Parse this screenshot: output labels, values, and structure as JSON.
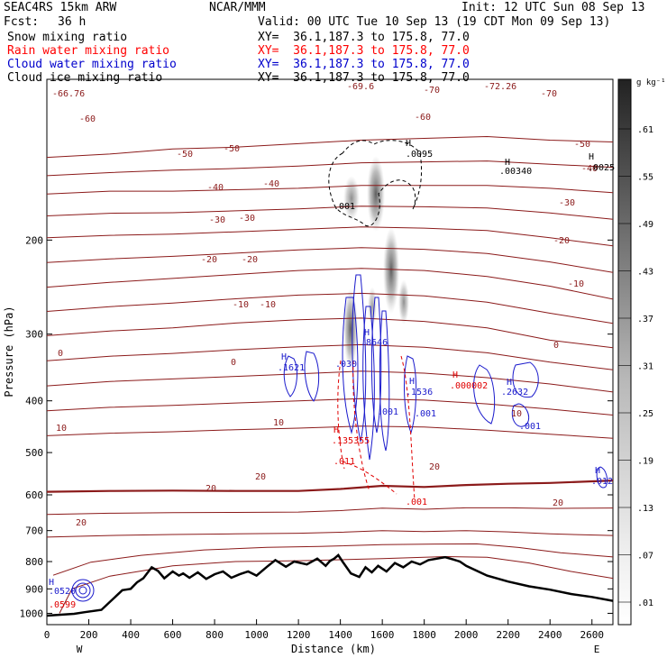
{
  "header": {
    "model": "SEAC4RS 15km ARW",
    "org": "NCAR/MMM",
    "init": "Init: 12 UTC Sun 08 Sep 13",
    "fcst_label": "Fcst:",
    "fcst_value": "36 h",
    "valid": "Valid: 00 UTC Tue 10 Sep 13 (19 CDT Mon 09 Sep 13)"
  },
  "fields": [
    {
      "name": "Snow mixing ratio",
      "xy": "XY=  36.1,187.3 to 175.8, 77.0",
      "color": "#000000"
    },
    {
      "name": "Rain water mixing ratio",
      "xy": "XY=  36.1,187.3 to 175.8, 77.0",
      "color": "#ff0000"
    },
    {
      "name": "Cloud water mixing ratio",
      "xy": "XY=  36.1,187.3 to 175.8, 77.0",
      "color": "#0000cc"
    },
    {
      "name": "Cloud ice mixing ratio",
      "xy": "XY=  36.1,187.3 to 175.8, 77.0",
      "color": "#000000"
    }
  ],
  "colorbar": {
    "unit": "g kg⁻¹",
    "labels": [
      ".61",
      ".55",
      ".49",
      ".43",
      ".37",
      ".31",
      ".25",
      ".19",
      ".13",
      ".07",
      ".01"
    ]
  },
  "chart_data": {
    "type": "contour",
    "xlabel": "Distance (km)",
    "ylabel": "Pressure (hPa)",
    "xlim": [
      0,
      2700
    ],
    "ylim": [
      1050,
      100
    ],
    "y_scale": "log",
    "x_ticks": [
      0,
      200,
      400,
      600,
      800,
      1000,
      1200,
      1400,
      1600,
      1800,
      2000,
      2200,
      2400,
      2600
    ],
    "y_ticks": [
      1000,
      900,
      800,
      700,
      600,
      500,
      400,
      300,
      200
    ],
    "x_end_labels": {
      "left": "W",
      "right": "E"
    },
    "terrain": [
      [
        0,
        1010
      ],
      [
        130,
        1002
      ],
      [
        180,
        995
      ],
      [
        260,
        985
      ],
      [
        360,
        905
      ],
      [
        400,
        900
      ],
      [
        430,
        875
      ],
      [
        460,
        860
      ],
      [
        500,
        820
      ],
      [
        530,
        833
      ],
      [
        560,
        860
      ],
      [
        600,
        835
      ],
      [
        630,
        850
      ],
      [
        650,
        842
      ],
      [
        680,
        858
      ],
      [
        720,
        838
      ],
      [
        760,
        862
      ],
      [
        800,
        845
      ],
      [
        840,
        835
      ],
      [
        880,
        858
      ],
      [
        920,
        845
      ],
      [
        960,
        835
      ],
      [
        1000,
        850
      ],
      [
        1050,
        818
      ],
      [
        1090,
        795
      ],
      [
        1140,
        818
      ],
      [
        1180,
        800
      ],
      [
        1240,
        810
      ],
      [
        1290,
        790
      ],
      [
        1330,
        815
      ],
      [
        1350,
        798
      ],
      [
        1370,
        790
      ],
      [
        1390,
        778
      ],
      [
        1410,
        800
      ],
      [
        1450,
        842
      ],
      [
        1490,
        855
      ],
      [
        1520,
        820
      ],
      [
        1550,
        838
      ],
      [
        1580,
        815
      ],
      [
        1620,
        835
      ],
      [
        1660,
        805
      ],
      [
        1700,
        820
      ],
      [
        1740,
        800
      ],
      [
        1780,
        810
      ],
      [
        1820,
        795
      ],
      [
        1860,
        790
      ],
      [
        1900,
        785
      ],
      [
        1940,
        793
      ],
      [
        1970,
        800
      ],
      [
        2000,
        815
      ],
      [
        2100,
        850
      ],
      [
        2200,
        872
      ],
      [
        2300,
        890
      ],
      [
        2400,
        903
      ],
      [
        2500,
        920
      ],
      [
        2600,
        932
      ],
      [
        2700,
        948
      ]
    ],
    "temperature_isotherms": [
      {
        "label": "-70",
        "points": [
          [
            0,
            140
          ],
          [
            300,
            138
          ],
          [
            600,
            135
          ],
          [
            900,
            134
          ],
          [
            1200,
            132
          ],
          [
            1500,
            130
          ],
          [
            1800,
            129
          ],
          [
            2100,
            128
          ],
          [
            2400,
            130
          ],
          [
            2700,
            131
          ]
        ]
      },
      {
        "label": "-60",
        "points": [
          [
            0,
            164
          ],
          [
            300,
            162
          ],
          [
            600,
            162
          ],
          [
            900,
            161
          ],
          [
            1200,
            160
          ],
          [
            1500,
            158
          ],
          [
            1800,
            158
          ],
          [
            2100,
            158
          ],
          [
            2400,
            160
          ],
          [
            2700,
            163
          ]
        ]
      },
      {
        "label": "-50",
        "points": [
          [
            0,
            198
          ],
          [
            300,
            196
          ],
          [
            600,
            195
          ],
          [
            900,
            193
          ],
          [
            1200,
            191
          ],
          [
            1500,
            189
          ],
          [
            1800,
            190
          ],
          [
            2100,
            192
          ],
          [
            2400,
            198
          ],
          [
            2700,
            205
          ]
        ]
      },
      {
        "label": "-40",
        "points": [
          [
            0,
            245
          ],
          [
            300,
            240
          ],
          [
            600,
            236
          ],
          [
            900,
            232
          ],
          [
            1200,
            228
          ],
          [
            1500,
            226
          ],
          [
            1800,
            228
          ],
          [
            2100,
            234
          ],
          [
            2400,
            244
          ],
          [
            2700,
            258
          ]
        ]
      },
      {
        "label": "-30",
        "points": [
          [
            0,
            302
          ],
          [
            300,
            296
          ],
          [
            600,
            292
          ],
          [
            900,
            286
          ],
          [
            1200,
            282
          ],
          [
            1500,
            280
          ],
          [
            1800,
            284
          ],
          [
            2100,
            292
          ],
          [
            2400,
            308
          ],
          [
            2700,
            318
          ]
        ]
      },
      {
        "label": "-20",
        "points": [
          [
            0,
            375
          ],
          [
            300,
            368
          ],
          [
            600,
            364
          ],
          [
            900,
            360
          ],
          [
            1200,
            356
          ],
          [
            1500,
            352
          ],
          [
            1800,
            355
          ],
          [
            2100,
            362
          ],
          [
            2400,
            372
          ],
          [
            2700,
            385
          ]
        ]
      },
      {
        "label": "-10",
        "points": [
          [
            0,
            465
          ],
          [
            300,
            460
          ],
          [
            600,
            457
          ],
          [
            900,
            453
          ],
          [
            1200,
            450
          ],
          [
            1500,
            446
          ],
          [
            1800,
            448
          ],
          [
            2100,
            454
          ],
          [
            2400,
            462
          ],
          [
            2700,
            470
          ]
        ]
      },
      {
        "label": "0",
        "points": [
          [
            0,
            592
          ],
          [
            300,
            590
          ],
          [
            600,
            589
          ],
          [
            900,
            590
          ],
          [
            1200,
            590
          ],
          [
            1400,
            585
          ],
          [
            1600,
            577
          ],
          [
            1800,
            580
          ],
          [
            2000,
            575
          ],
          [
            2200,
            572
          ],
          [
            2400,
            570
          ],
          [
            2700,
            564
          ]
        ]
      },
      {
        "label": "10",
        "points": [
          [
            0,
            720
          ],
          [
            300,
            715
          ],
          [
            600,
            712
          ],
          [
            900,
            710
          ],
          [
            1200,
            708
          ],
          [
            1400,
            705
          ],
          [
            1600,
            700
          ],
          [
            1800,
            703
          ],
          [
            2000,
            700
          ],
          [
            2200,
            704
          ],
          [
            2400,
            710
          ],
          [
            2700,
            715
          ]
        ]
      },
      {
        "label": "20",
        "points": [
          [
            60,
            1000
          ],
          [
            120,
            900
          ],
          [
            300,
            852
          ],
          [
            600,
            815
          ],
          [
            900,
            800
          ],
          [
            1200,
            797
          ],
          [
            1600,
            790
          ],
          [
            1900,
            783
          ],
          [
            2100,
            785
          ],
          [
            2300,
            805
          ],
          [
            2500,
            835
          ],
          [
            2700,
            860
          ]
        ]
      }
    ],
    "labels_snow": [
      ".001",
      ".0095",
      ".00340",
      ".0025"
    ],
    "labels_rain": [
      ".135355",
      ".000002",
      ".011",
      ".001"
    ],
    "labels_cloud_water": [
      ".1621",
      ".8646",
      ".1536",
      ".2632",
      ".001",
      ".012",
      ".030"
    ],
    "labels_other": [
      "-66.76",
      "-69.6",
      "-72.26",
      ".0520",
      ".0599"
    ],
    "snow_max_g_kg": 0.61
  }
}
